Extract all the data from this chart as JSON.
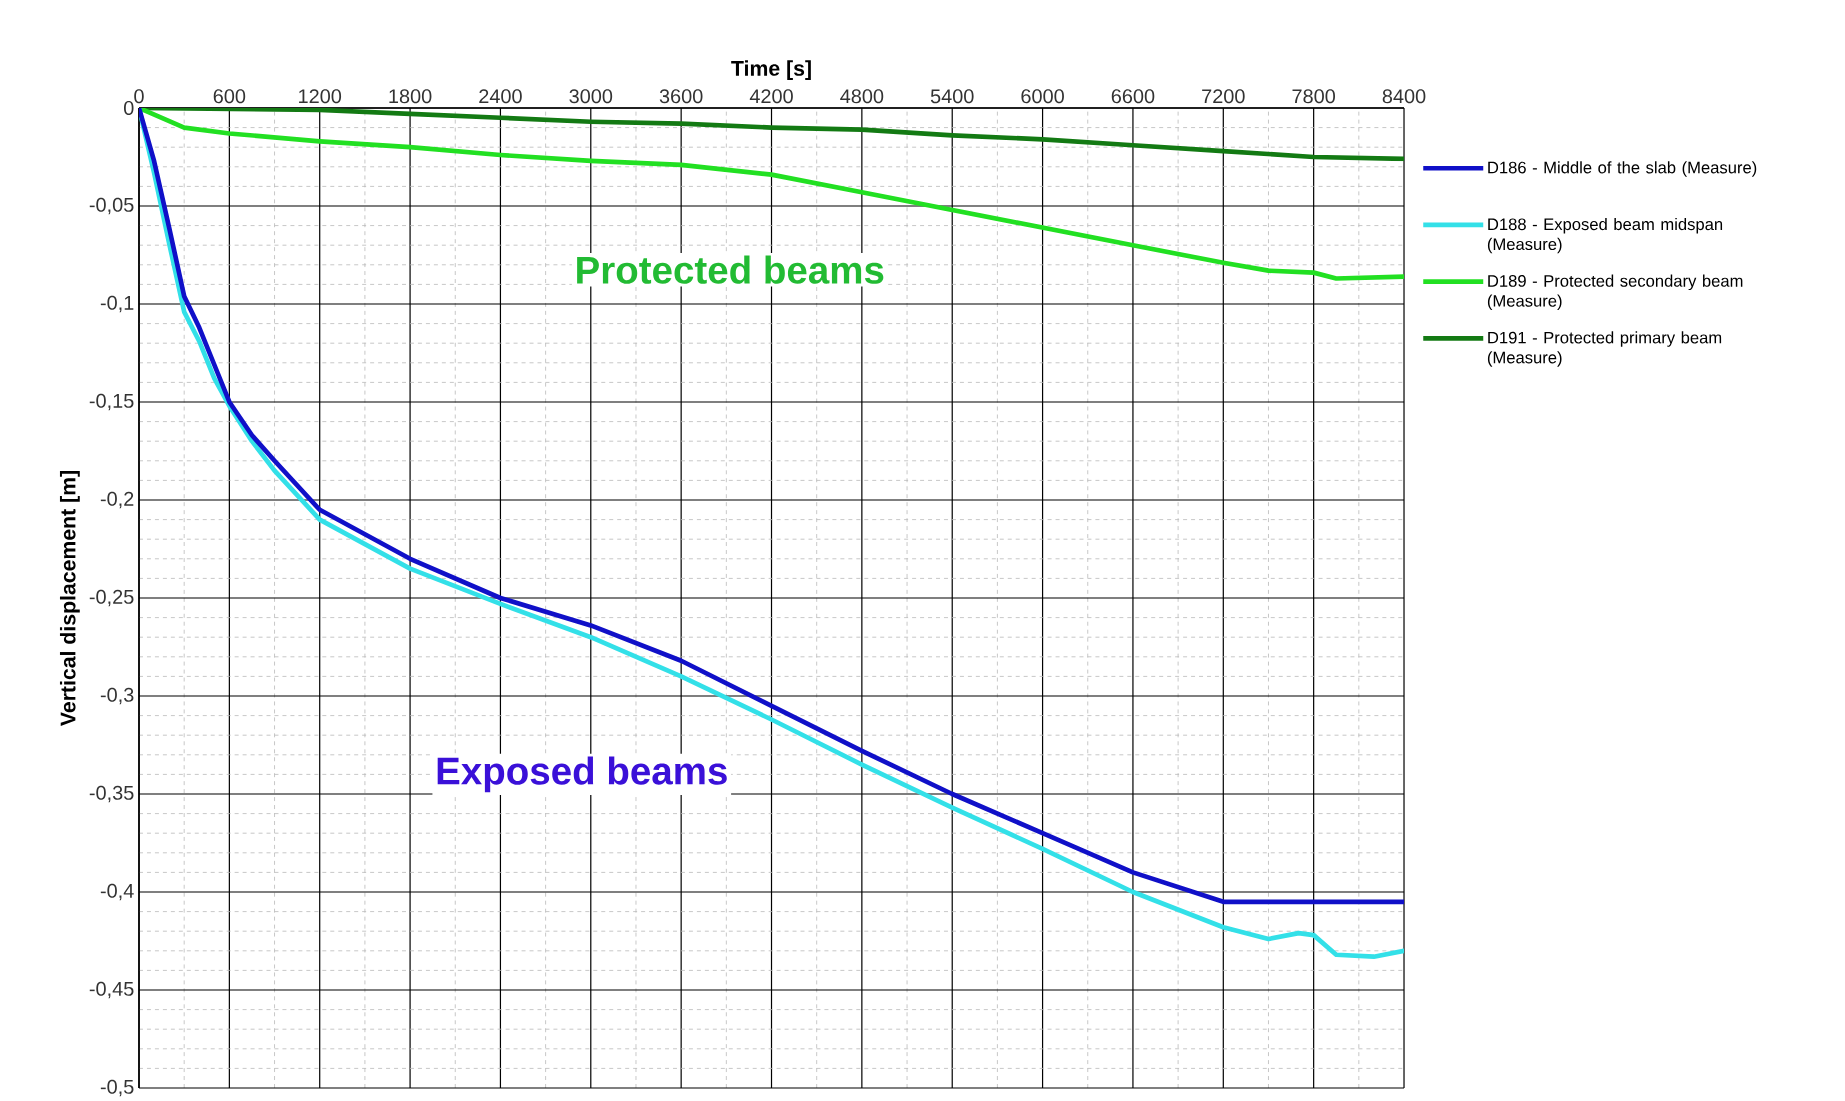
{
  "chart_data": {
    "type": "line",
    "xlabel": "Time [s]",
    "ylabel": "Vertical displacement [m]",
    "xlim": [
      0,
      8400
    ],
    "xticks": [
      0,
      600,
      1200,
      1800,
      2400,
      3000,
      3600,
      4200,
      4800,
      5400,
      6000,
      6600,
      7200,
      7800,
      8400
    ],
    "ylim": [
      -0.5,
      0
    ],
    "yticks": [
      {
        "value": 0,
        "label": "0"
      },
      {
        "value": -0.05,
        "label": "-0,05"
      },
      {
        "value": -0.1,
        "label": "-0,1"
      },
      {
        "value": -0.15,
        "label": "-0,15"
      },
      {
        "value": -0.2,
        "label": "-0,2"
      },
      {
        "value": -0.25,
        "label": "-0,25"
      },
      {
        "value": -0.3,
        "label": "-0,3"
      },
      {
        "value": -0.35,
        "label": "-0,35"
      },
      {
        "value": -0.4,
        "label": "-0,4"
      },
      {
        "value": -0.45,
        "label": "-0,45"
      },
      {
        "value": -0.5,
        "label": "-0,5"
      }
    ],
    "grid": true,
    "legend": "right",
    "marker": "none",
    "line_style": "solid",
    "series": [
      {
        "name": "D186 - Middle of the slab (Measure)",
        "color": "#1010c8",
        "x": [
          0,
          100,
          200,
          300,
          400,
          500,
          600,
          750,
          900,
          1200,
          1800,
          2400,
          3000,
          3600,
          4200,
          4800,
          5400,
          6000,
          6600,
          7200,
          7800,
          8400
        ],
        "values": [
          0,
          -0.027,
          -0.061,
          -0.096,
          -0.112,
          -0.131,
          -0.15,
          -0.167,
          -0.18,
          -0.205,
          -0.23,
          -0.25,
          -0.264,
          -0.282,
          -0.305,
          -0.328,
          -0.35,
          -0.37,
          -0.39,
          -0.405,
          -0.405,
          -0.405
        ]
      },
      {
        "name": "D188 - Exposed beam midspan (Measure)",
        "color": "#33e0e8",
        "x": [
          0,
          100,
          200,
          300,
          400,
          500,
          600,
          750,
          900,
          1200,
          1800,
          2400,
          3000,
          3600,
          4200,
          4800,
          5400,
          6000,
          6600,
          7200,
          7500,
          7700,
          7800,
          7950,
          8200,
          8400
        ],
        "values": [
          0,
          -0.033,
          -0.069,
          -0.104,
          -0.119,
          -0.138,
          -0.152,
          -0.17,
          -0.185,
          -0.21,
          -0.235,
          -0.253,
          -0.27,
          -0.29,
          -0.312,
          -0.335,
          -0.357,
          -0.378,
          -0.4,
          -0.418,
          -0.424,
          -0.421,
          -0.422,
          -0.432,
          -0.433,
          -0.43
        ]
      },
      {
        "name": "D189 - Protected secondary beam (Measure)",
        "color": "#22e022",
        "x": [
          0,
          300,
          600,
          1200,
          1800,
          2400,
          3000,
          3600,
          4200,
          4800,
          5400,
          6000,
          6600,
          7200,
          7500,
          7800,
          7950,
          8400
        ],
        "values": [
          0,
          -0.01,
          -0.013,
          -0.017,
          -0.02,
          -0.024,
          -0.027,
          -0.029,
          -0.034,
          -0.043,
          -0.052,
          -0.061,
          -0.07,
          -0.079,
          -0.083,
          -0.084,
          -0.087,
          -0.086
        ]
      },
      {
        "name": "D191 - Protected primary beam (Measure)",
        "color": "#137a13",
        "x": [
          0,
          1200,
          1800,
          2400,
          3000,
          3600,
          4200,
          4800,
          5400,
          6000,
          6600,
          7200,
          7800,
          8400
        ],
        "values": [
          0,
          -0.001,
          -0.003,
          -0.005,
          -0.007,
          -0.008,
          -0.01,
          -0.011,
          -0.014,
          -0.016,
          -0.019,
          -0.022,
          -0.025,
          -0.026
        ]
      }
    ],
    "annotations": [
      "Protected beams",
      "Exposed beams"
    ]
  }
}
